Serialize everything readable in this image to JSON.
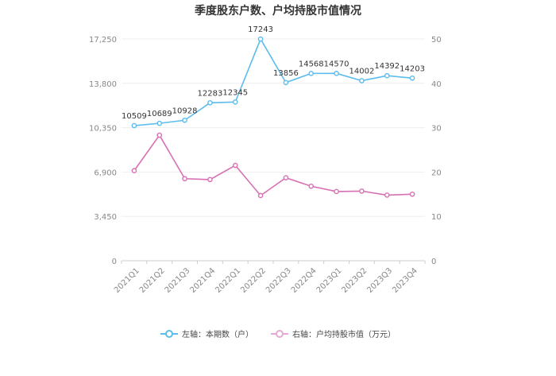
{
  "chart_data": {
    "type": "line",
    "title": "季度股东户数、户均持股市值情况",
    "categories": [
      "2021Q1",
      "2021Q2",
      "2021Q3",
      "2021Q4",
      "2022Q1",
      "2022Q2",
      "2022Q3",
      "2022Q4",
      "2023Q1",
      "2023Q2",
      "2023Q3",
      "2023Q4"
    ],
    "series": [
      {
        "name": "左轴：本期数（户）",
        "axis": "left",
        "color": "#5bbcee",
        "values": [
          10509,
          10689,
          10928,
          12283,
          12345,
          17243,
          13856,
          14568,
          14570,
          14002,
          14392,
          14203
        ],
        "labels": [
          "10509",
          "10689",
          "10928",
          "12283",
          "12345",
          "17243",
          "13856",
          "14568",
          "14570",
          "14002",
          "14392",
          "14203"
        ]
      },
      {
        "name": "右轴：户均持股市值（万元）",
        "axis": "right",
        "color": "#d86fb4",
        "values": [
          20.3,
          28.3,
          18.5,
          18.3,
          21.5,
          14.7,
          18.7,
          16.8,
          15.6,
          15.7,
          14.8,
          15.0
        ]
      }
    ],
    "left_axis": {
      "ylim": [
        0,
        17250
      ],
      "ticks": [
        0,
        3450,
        6900,
        10350,
        13800,
        17250
      ],
      "tick_labels": [
        "0",
        "3,450",
        "6,900",
        "10,350",
        "13,800",
        "17,250"
      ]
    },
    "right_axis": {
      "ylim": [
        0,
        50
      ],
      "ticks": [
        0,
        10,
        20,
        30,
        40,
        50
      ],
      "tick_labels": [
        "0",
        "10",
        "20",
        "30",
        "40",
        "50"
      ]
    },
    "grid": true,
    "legend_position": "bottom"
  }
}
